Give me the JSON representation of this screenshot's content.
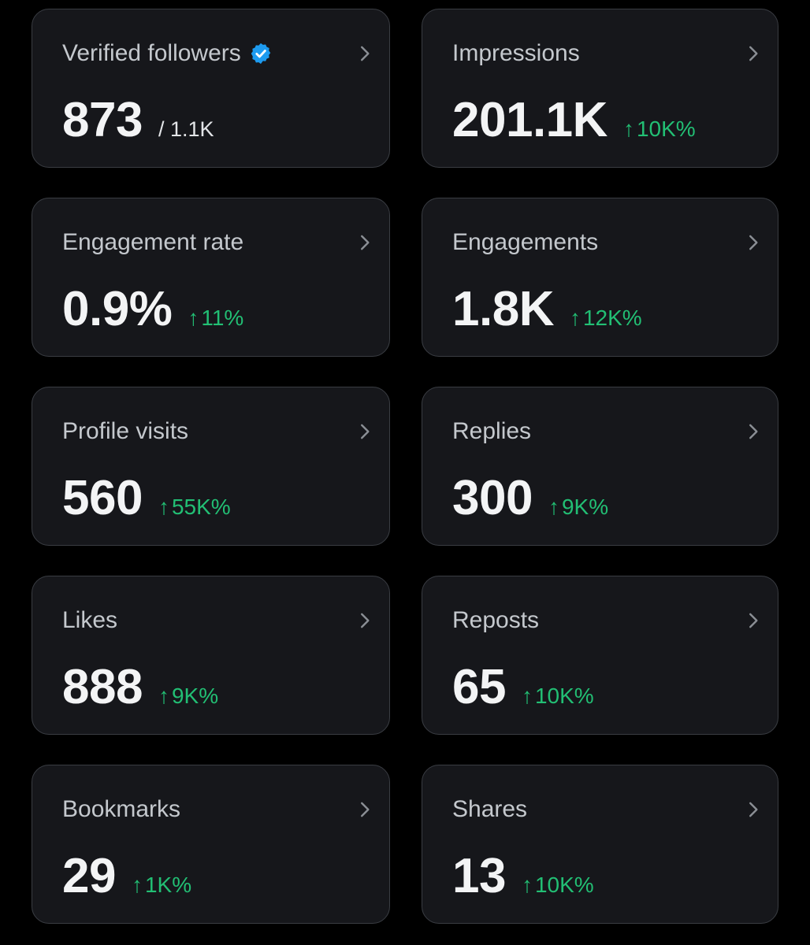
{
  "colors": {
    "background": "#000000",
    "card_background": "#16171b",
    "card_border": "#3a3d43",
    "title_text": "#c4c8cd",
    "value_text": "#f3f4f5",
    "positive_delta": "#22bf74",
    "verified_badge": "#1d9bf0"
  },
  "icons": {
    "card_chevron": "chevron-right-icon",
    "verified": "verified-badge-icon",
    "trend": "arrow-up-icon"
  },
  "cards": [
    {
      "title": "Verified followers",
      "value": "873",
      "sub": "/ 1.1K"
    },
    {
      "title": "Impressions",
      "value": "201.1K",
      "arrow": "↑",
      "delta": "10K%"
    },
    {
      "title": "Engagement rate",
      "value": "0.9%",
      "arrow": "↑",
      "delta": "11%"
    },
    {
      "title": "Engagements",
      "value": "1.8K",
      "arrow": "↑",
      "delta": "12K%"
    },
    {
      "title": "Profile visits",
      "value": "560",
      "arrow": "↑",
      "delta": "55K%"
    },
    {
      "title": "Replies",
      "value": "300",
      "arrow": "↑",
      "delta": "9K%"
    },
    {
      "title": "Likes",
      "value": "888",
      "arrow": "↑",
      "delta": "9K%"
    },
    {
      "title": "Reposts",
      "value": "65",
      "arrow": "↑",
      "delta": "10K%"
    },
    {
      "title": "Bookmarks",
      "value": "29",
      "arrow": "↑",
      "delta": "1K%"
    },
    {
      "title": "Shares",
      "value": "13",
      "arrow": "↑",
      "delta": "10K%"
    }
  ]
}
